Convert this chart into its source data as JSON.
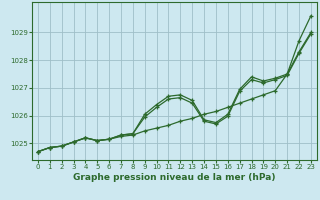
{
  "background_color": "#cde8f0",
  "plot_bg_color": "#cde8f0",
  "grid_color": "#9fbfc8",
  "line_color": "#2d6a2d",
  "marker_color": "#2d6a2d",
  "xlabel": "Graphe pression niveau de la mer (hPa)",
  "xlabel_fontsize": 6.5,
  "xlim": [
    -0.5,
    23.5
  ],
  "ylim": [
    1024.4,
    1030.1
  ],
  "yticks": [
    1025,
    1026,
    1027,
    1028,
    1029
  ],
  "xticks": [
    0,
    1,
    2,
    3,
    4,
    5,
    6,
    7,
    8,
    9,
    10,
    11,
    12,
    13,
    14,
    15,
    16,
    17,
    18,
    19,
    20,
    21,
    22,
    23
  ],
  "series": [
    [
      1024.7,
      1024.85,
      1024.9,
      1025.05,
      1025.2,
      1025.1,
      1025.15,
      1025.25,
      1025.3,
      1025.45,
      1025.55,
      1025.65,
      1025.8,
      1025.9,
      1026.05,
      1026.15,
      1026.3,
      1026.45,
      1026.6,
      1026.75,
      1026.9,
      1027.5,
      1028.7,
      1029.6
    ],
    [
      1024.7,
      1024.85,
      1024.9,
      1025.05,
      1025.2,
      1025.1,
      1025.15,
      1025.3,
      1025.35,
      1026.05,
      1026.4,
      1026.7,
      1026.75,
      1026.55,
      1025.85,
      1025.75,
      1026.05,
      1026.95,
      1027.4,
      1027.25,
      1027.35,
      1027.5,
      1028.3,
      1029.0
    ],
    [
      1024.7,
      1024.85,
      1024.9,
      1025.05,
      1025.2,
      1025.1,
      1025.15,
      1025.3,
      1025.35,
      1025.95,
      1026.3,
      1026.6,
      1026.65,
      1026.45,
      1025.8,
      1025.7,
      1025.98,
      1026.88,
      1027.3,
      1027.18,
      1027.3,
      1027.45,
      1028.25,
      1028.95
    ]
  ]
}
